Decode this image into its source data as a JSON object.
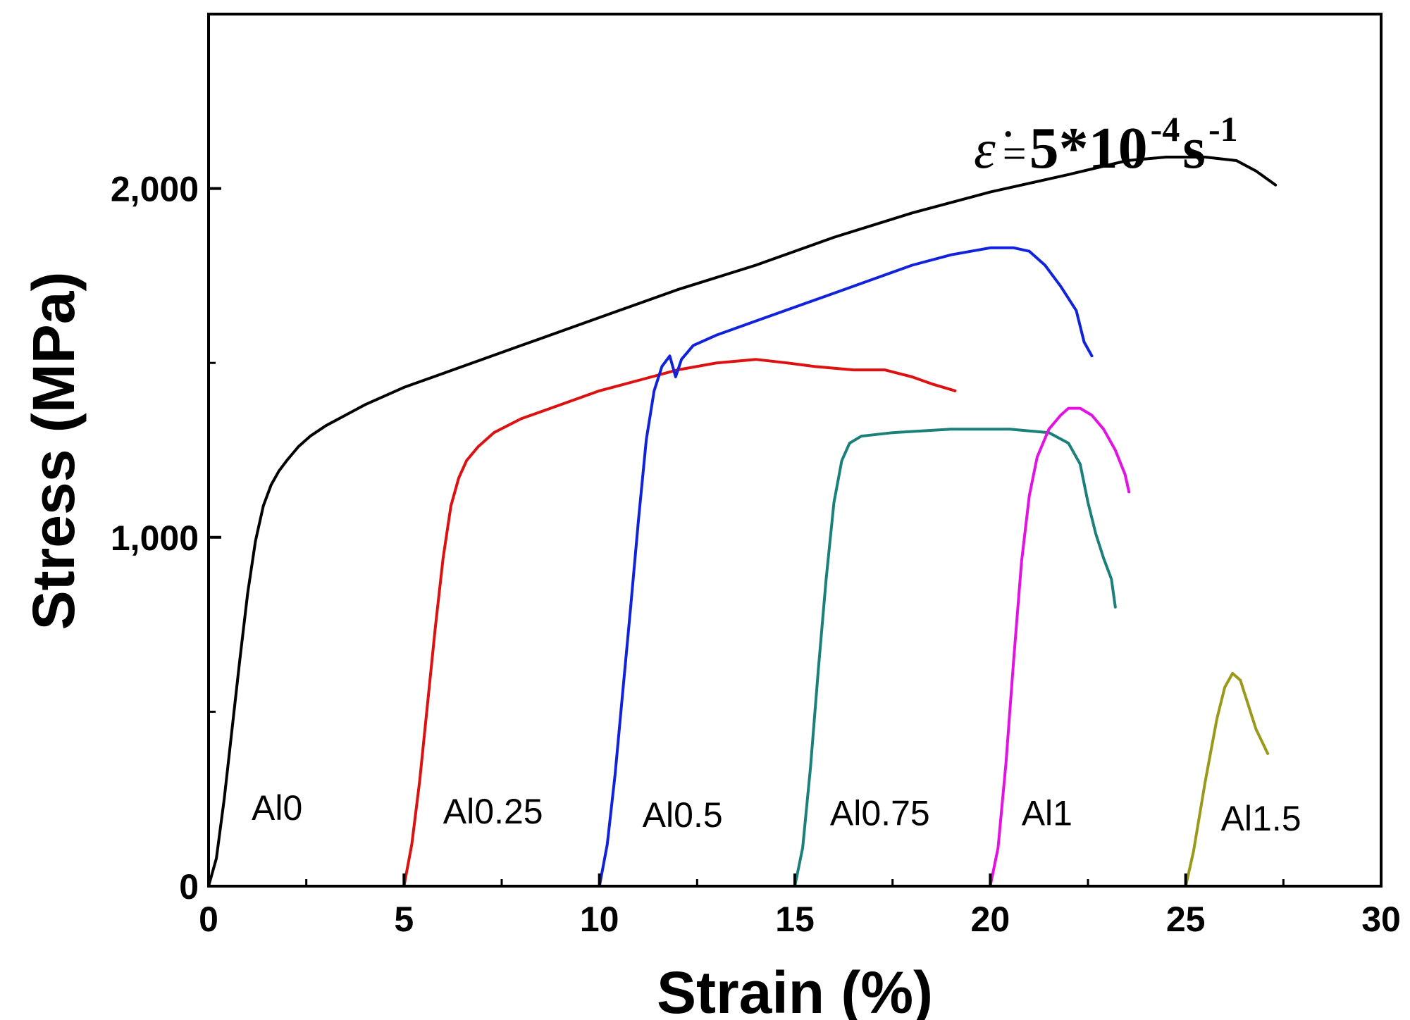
{
  "chart_data": {
    "type": "line",
    "title": "",
    "xlabel": "Strain (%)",
    "ylabel": "Stress (MPa)",
    "xlim": [
      0,
      30
    ],
    "ylim": [
      0,
      2500
    ],
    "x_ticks": [
      0,
      5,
      10,
      15,
      20,
      25,
      30
    ],
    "x_tick_labels": [
      "0",
      "5",
      "10",
      "15",
      "20",
      "25",
      "30"
    ],
    "y_ticks": [
      0,
      1000,
      2000
    ],
    "y_tick_labels": [
      "0",
      "1,000",
      "2,000"
    ],
    "y_minor_ticks": [
      500,
      1500
    ],
    "x_minor_ticks": [
      2.5,
      7.5,
      12.5,
      17.5,
      22.5,
      27.5
    ],
    "grid": false,
    "annotation": {
      "symbol": "ε̇",
      "equals": "=",
      "base": "5*10",
      "exp1": "-4",
      "unit": "s",
      "exp2": "-1"
    },
    "series": [
      {
        "name": "Al0",
        "color": "#000000",
        "label_at": [
          1.1,
          190
        ],
        "points": [
          [
            0,
            0
          ],
          [
            0.2,
            80
          ],
          [
            0.4,
            250
          ],
          [
            0.6,
            450
          ],
          [
            0.8,
            650
          ],
          [
            1.0,
            840
          ],
          [
            1.2,
            990
          ],
          [
            1.4,
            1090
          ],
          [
            1.6,
            1150
          ],
          [
            1.8,
            1190
          ],
          [
            2.0,
            1220
          ],
          [
            2.3,
            1260
          ],
          [
            2.6,
            1290
          ],
          [
            3.0,
            1320
          ],
          [
            3.5,
            1350
          ],
          [
            4.0,
            1380
          ],
          [
            5.0,
            1430
          ],
          [
            6.0,
            1470
          ],
          [
            8.0,
            1550
          ],
          [
            10.0,
            1630
          ],
          [
            12.0,
            1710
          ],
          [
            14.0,
            1780
          ],
          [
            16.0,
            1860
          ],
          [
            18.0,
            1930
          ],
          [
            20.0,
            1990
          ],
          [
            22.0,
            2040
          ],
          [
            23.5,
            2080
          ],
          [
            24.5,
            2090
          ],
          [
            25.5,
            2090
          ],
          [
            26.3,
            2080
          ],
          [
            26.8,
            2050
          ],
          [
            27.3,
            2010
          ]
        ]
      },
      {
        "name": "Al0.25",
        "color": "#dd1111",
        "label_at": [
          6.0,
          180
        ],
        "points": [
          [
            5.0,
            0
          ],
          [
            5.2,
            120
          ],
          [
            5.4,
            300
          ],
          [
            5.6,
            520
          ],
          [
            5.8,
            740
          ],
          [
            6.0,
            940
          ],
          [
            6.2,
            1090
          ],
          [
            6.4,
            1170
          ],
          [
            6.6,
            1220
          ],
          [
            6.9,
            1260
          ],
          [
            7.3,
            1300
          ],
          [
            8.0,
            1340
          ],
          [
            9.0,
            1380
          ],
          [
            10.0,
            1420
          ],
          [
            11.0,
            1450
          ],
          [
            12.0,
            1480
          ],
          [
            13.0,
            1500
          ],
          [
            14.0,
            1510
          ],
          [
            14.8,
            1500
          ],
          [
            15.5,
            1490
          ],
          [
            16.5,
            1480
          ],
          [
            17.3,
            1480
          ],
          [
            18.0,
            1460
          ],
          [
            18.5,
            1440
          ],
          [
            19.1,
            1420
          ]
        ]
      },
      {
        "name": "Al0.5",
        "color": "#1122dd",
        "label_at": [
          11.1,
          170
        ],
        "points": [
          [
            10.0,
            0
          ],
          [
            10.2,
            120
          ],
          [
            10.4,
            320
          ],
          [
            10.6,
            560
          ],
          [
            10.8,
            800
          ],
          [
            11.0,
            1050
          ],
          [
            11.2,
            1280
          ],
          [
            11.4,
            1420
          ],
          [
            11.6,
            1490
          ],
          [
            11.8,
            1520
          ],
          [
            11.95,
            1460
          ],
          [
            12.1,
            1510
          ],
          [
            12.4,
            1550
          ],
          [
            13.0,
            1580
          ],
          [
            14.0,
            1620
          ],
          [
            15.0,
            1660
          ],
          [
            16.0,
            1700
          ],
          [
            17.0,
            1740
          ],
          [
            18.0,
            1780
          ],
          [
            19.0,
            1810
          ],
          [
            20.0,
            1830
          ],
          [
            20.6,
            1830
          ],
          [
            21.0,
            1820
          ],
          [
            21.4,
            1780
          ],
          [
            21.8,
            1720
          ],
          [
            22.2,
            1650
          ],
          [
            22.4,
            1560
          ],
          [
            22.6,
            1520
          ]
        ]
      },
      {
        "name": "Al0.75",
        "color": "#1a8079",
        "label_at": [
          15.9,
          175
        ],
        "points": [
          [
            15.0,
            0
          ],
          [
            15.2,
            110
          ],
          [
            15.4,
            340
          ],
          [
            15.6,
            620
          ],
          [
            15.8,
            880
          ],
          [
            16.0,
            1100
          ],
          [
            16.2,
            1220
          ],
          [
            16.4,
            1270
          ],
          [
            16.7,
            1290
          ],
          [
            17.5,
            1300
          ],
          [
            19.0,
            1310
          ],
          [
            20.5,
            1310
          ],
          [
            21.5,
            1300
          ],
          [
            22.0,
            1270
          ],
          [
            22.3,
            1210
          ],
          [
            22.5,
            1100
          ],
          [
            22.7,
            1010
          ],
          [
            22.9,
            940
          ],
          [
            23.1,
            880
          ],
          [
            23.2,
            800
          ]
        ]
      },
      {
        "name": "Al1",
        "color": "#e312e3",
        "label_at": [
          20.8,
          175
        ],
        "points": [
          [
            20.0,
            0
          ],
          [
            20.2,
            110
          ],
          [
            20.4,
            350
          ],
          [
            20.6,
            650
          ],
          [
            20.8,
            930
          ],
          [
            21.0,
            1120
          ],
          [
            21.2,
            1230
          ],
          [
            21.5,
            1310
          ],
          [
            21.8,
            1350
          ],
          [
            22.0,
            1370
          ],
          [
            22.3,
            1370
          ],
          [
            22.6,
            1350
          ],
          [
            22.9,
            1310
          ],
          [
            23.2,
            1250
          ],
          [
            23.45,
            1180
          ],
          [
            23.55,
            1130
          ]
        ]
      },
      {
        "name": "Al1.5",
        "color": "#99991a",
        "label_at": [
          25.9,
          160
        ],
        "points": [
          [
            25.0,
            0
          ],
          [
            25.2,
            100
          ],
          [
            25.5,
            300
          ],
          [
            25.8,
            480
          ],
          [
            26.0,
            570
          ],
          [
            26.2,
            610
          ],
          [
            26.4,
            590
          ],
          [
            26.6,
            520
          ],
          [
            26.8,
            450
          ],
          [
            27.1,
            380
          ]
        ]
      }
    ]
  }
}
